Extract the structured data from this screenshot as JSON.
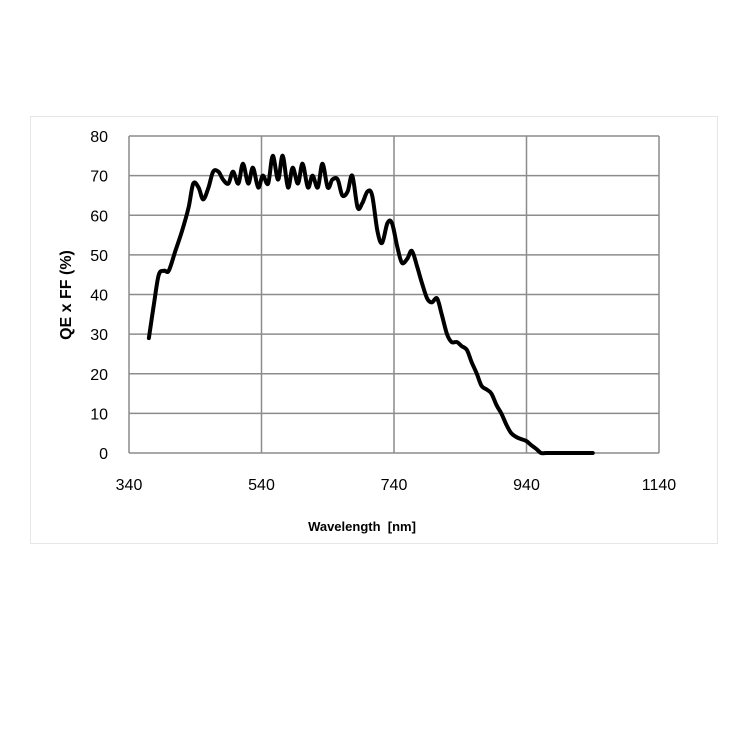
{
  "chart_data": {
    "type": "line",
    "title": "",
    "xlabel": "Wavelength  [nm]",
    "ylabel": "QE x FF (%)",
    "xlim": [
      340,
      1140
    ],
    "ylim": [
      0,
      80
    ],
    "xticks": [
      340,
      540,
      740,
      940,
      1140
    ],
    "yticks": [
      0,
      10,
      20,
      30,
      40,
      50,
      60,
      70,
      80
    ],
    "grid": true,
    "legend": "none",
    "line_color": "#000000",
    "series": [
      {
        "x": [
          370,
          378,
          385,
          393,
          400,
          410,
          420,
          430,
          437,
          445,
          452,
          460,
          467,
          475,
          482,
          490,
          497,
          505,
          512,
          520,
          527,
          535,
          542,
          550,
          557,
          565,
          572,
          580,
          587,
          595,
          602,
          610,
          617,
          625,
          632,
          640,
          647,
          655,
          662,
          670,
          677,
          685,
          692,
          700,
          707,
          715,
          722,
          730,
          737,
          745,
          752,
          760,
          767,
          775,
          782,
          790,
          797,
          805,
          812,
          820,
          827,
          835,
          842,
          850,
          857,
          865,
          872,
          880,
          887,
          895,
          902,
          910,
          917,
          925,
          932,
          940,
          947,
          955,
          962,
          970,
          980,
          990,
          1000,
          1010,
          1020,
          1030,
          1040
        ],
        "y": [
          29,
          38,
          45,
          46,
          46,
          51,
          56,
          62,
          68,
          67,
          64,
          67,
          71,
          71,
          69,
          68,
          71,
          68,
          73,
          68,
          72,
          67,
          70,
          68,
          75,
          69,
          75,
          67,
          72,
          68,
          73,
          67,
          70,
          67,
          73,
          67,
          69,
          69,
          65,
          66,
          70,
          62,
          63,
          66,
          65,
          56,
          53,
          58,
          58,
          52,
          48,
          49,
          51,
          47,
          43,
          39,
          38,
          39,
          35,
          30,
          28,
          28,
          27,
          26,
          23,
          20,
          17,
          16,
          15,
          12,
          10,
          7,
          5,
          4,
          3.5,
          3,
          2,
          1,
          0,
          0,
          0,
          0,
          0,
          0,
          0,
          0,
          0
        ]
      }
    ]
  }
}
